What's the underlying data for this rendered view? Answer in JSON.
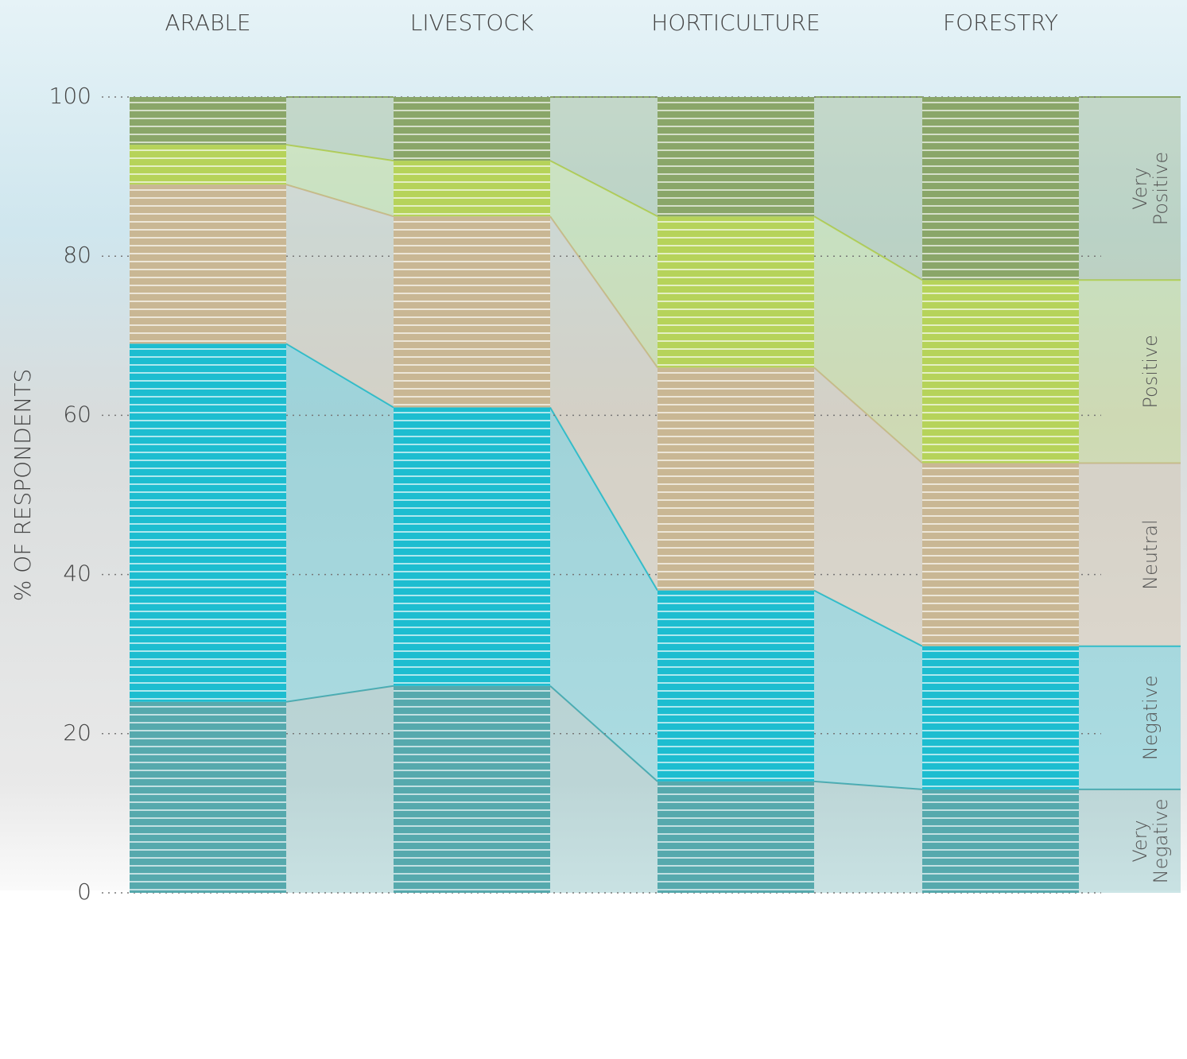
{
  "chart_data": {
    "type": "stacked_bar",
    "y_label": "% OF RESPONDENTS",
    "categories": [
      "ARABLE",
      "LIVESTOCK",
      "HORTICULTURE",
      "FORESTRY"
    ],
    "series": [
      {
        "name": "Very Negative",
        "color": "#56a9ad",
        "label_color": "#3a9a9f",
        "values": [
          24,
          26,
          14,
          13
        ]
      },
      {
        "name": "Negative",
        "color": "#1dbdd0",
        "label_color": "#1dbdd0",
        "values": [
          45,
          35,
          24,
          18
        ]
      },
      {
        "name": "Neutral",
        "color": "#c9b794",
        "label_color": "#9b7c45",
        "values": [
          20,
          24,
          28,
          23
        ]
      },
      {
        "name": "Positive",
        "color": "#b6d35a",
        "label_color": "#b6d35a",
        "values": [
          5,
          7,
          19,
          23
        ]
      },
      {
        "name": "Very Positive",
        "color": "#8aa669",
        "label_color": "#6e9a47",
        "values": [
          6,
          8,
          15,
          23
        ]
      }
    ],
    "ylim": [
      0,
      100
    ],
    "yticks": [
      0,
      20,
      40,
      60,
      80,
      100
    ],
    "grid": true
  }
}
